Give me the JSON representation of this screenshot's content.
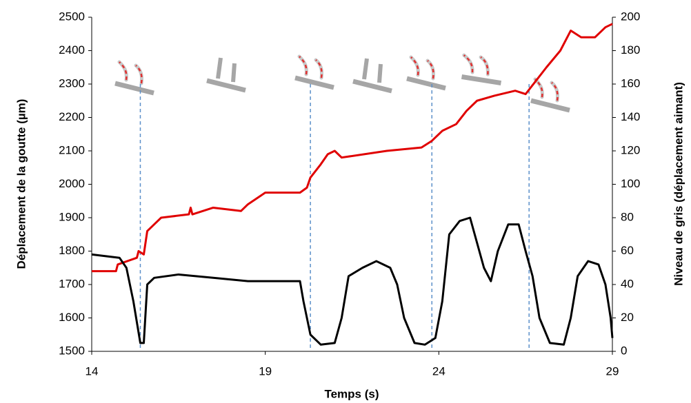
{
  "chart_data": {
    "type": "line",
    "xlabel": "Temps (s)",
    "ylabel": "Déplacement de la goutte (µm)",
    "y2label": "Niveau de gris (déplacement aimant)",
    "xlim": [
      14,
      29
    ],
    "xticks": [
      14,
      19,
      24,
      29
    ],
    "ylim": [
      1500,
      2500
    ],
    "yticks": [
      1500,
      1600,
      1700,
      1800,
      1900,
      2000,
      2100,
      2200,
      2300,
      2400,
      2500
    ],
    "y2lim": [
      0,
      200
    ],
    "y2ticks": [
      0,
      20,
      40,
      60,
      80,
      100,
      120,
      140,
      160,
      180,
      200
    ],
    "event_lines": [
      15.4,
      20.3,
      23.8,
      26.6
    ],
    "event_color": "#5b8fc9",
    "series": [
      {
        "color": "#e00000",
        "x": [
          14,
          14.7,
          14.75,
          15.3,
          15.35,
          15.5,
          15.6,
          15.8,
          16,
          16.8,
          16.85,
          16.9,
          17.5,
          18.3,
          18.5,
          19,
          20,
          20.2,
          20.3,
          20.6,
          20.8,
          21,
          21.2,
          22.5,
          23.5,
          23.8,
          24.1,
          24.5,
          24.8,
          25.1,
          25.6,
          26.2,
          26.5,
          26.8,
          27.1,
          27.5,
          27.8,
          28.1,
          28.5,
          28.8,
          29
        ],
        "values": [
          1740,
          1740,
          1760,
          1780,
          1800,
          1790,
          1860,
          1880,
          1900,
          1910,
          1930,
          1910,
          1930,
          1920,
          1940,
          1975,
          1975,
          1990,
          2020,
          2060,
          2090,
          2100,
          2080,
          2100,
          2110,
          2130,
          2160,
          2180,
          2220,
          2250,
          2265,
          2280,
          2270,
          2310,
          2350,
          2400,
          2460,
          2440,
          2440,
          2470,
          2480
        ]
      },
      {
        "color": "#000000",
        "axis": "y2",
        "x": [
          14,
          14.8,
          15,
          15.2,
          15.4,
          15.5,
          15.6,
          15.8,
          16.5,
          17.5,
          18.5,
          19.5,
          20,
          20.1,
          20.3,
          20.6,
          21,
          21.2,
          21.4,
          21.8,
          22.2,
          22.6,
          22.8,
          23,
          23.3,
          23.6,
          23.9,
          24.1,
          24.3,
          24.6,
          24.9,
          25.1,
          25.3,
          25.5,
          25.7,
          26,
          26.3,
          26.5,
          26.7,
          26.9,
          27.2,
          27.6,
          27.8,
          28,
          28.3,
          28.6,
          28.8,
          28.95,
          29
        ],
        "values": [
          58,
          56,
          50,
          30,
          5,
          5,
          40,
          44,
          46,
          44,
          42,
          42,
          42,
          30,
          10,
          4,
          5,
          20,
          45,
          50,
          54,
          50,
          40,
          20,
          5,
          4,
          8,
          30,
          70,
          78,
          80,
          65,
          50,
          42,
          60,
          76,
          76,
          60,
          45,
          20,
          5,
          4,
          20,
          45,
          54,
          52,
          40,
          20,
          8
        ]
      }
    ]
  }
}
